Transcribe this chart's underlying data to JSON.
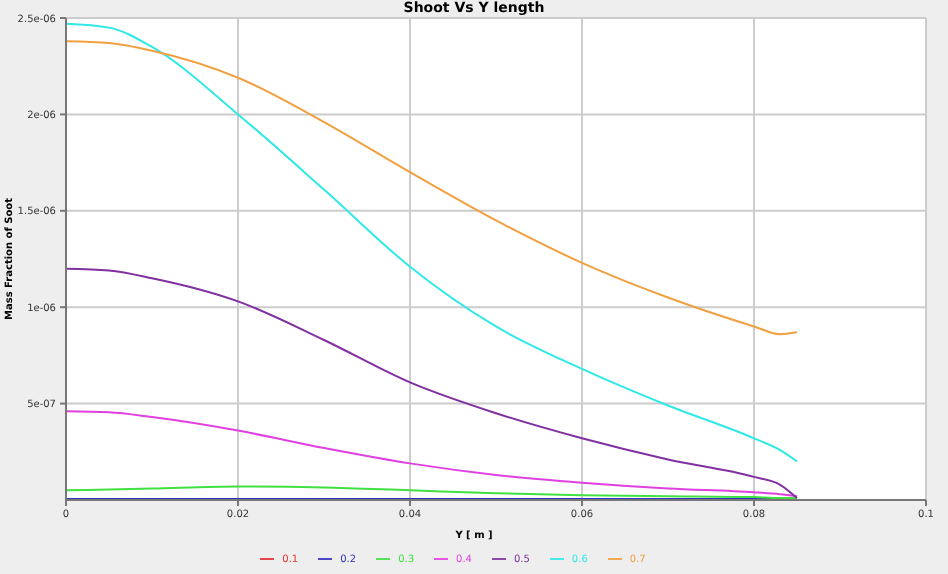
{
  "chart_data": {
    "type": "line",
    "title": "Shoot Vs Y length",
    "xlabel": "Y [ m ]",
    "ylabel": "Mass Fraction of Soot",
    "x": [
      0,
      0.005,
      0.01,
      0.02,
      0.03,
      0.04,
      0.05,
      0.06,
      0.07,
      0.08,
      0.083,
      0.085
    ],
    "series": [
      {
        "name": "0.1",
        "color": "#e03030",
        "values": [
          null,
          null,
          null,
          null,
          null,
          null,
          null,
          null,
          null,
          null,
          null,
          null
        ]
      },
      {
        "name": "0.2",
        "color": "#3030c0",
        "values": [
          5e-09,
          5e-09,
          5e-09,
          5e-09,
          5e-09,
          5e-09,
          5e-09,
          5e-09,
          5e-09,
          5e-09,
          5e-09,
          5e-09
        ]
      },
      {
        "name": "0.3",
        "color": "#40e040",
        "values": [
          5e-08,
          5.5e-08,
          6e-08,
          7e-08,
          6.5e-08,
          5e-08,
          3.5e-08,
          2.5e-08,
          2e-08,
          1.5e-08,
          1e-08,
          1e-08
        ]
      },
      {
        "name": "0.4",
        "color": "#e040e0",
        "values": [
          4.6e-07,
          4.55e-07,
          4.3e-07,
          3.6e-07,
          2.7e-07,
          1.9e-07,
          1.3e-07,
          9e-08,
          6e-08,
          4e-08,
          3e-08,
          2e-08
        ]
      },
      {
        "name": "0.5",
        "color": "#8030a0",
        "values": [
          1.2e-06,
          1.19e-06,
          1.15e-06,
          1.03e-06,
          8.3e-07,
          6.1e-07,
          4.5e-07,
          3.2e-07,
          2.1e-07,
          1.2e-07,
          8e-08,
          1e-08
        ]
      },
      {
        "name": "0.6",
        "color": "#30e8e8",
        "values": [
          2.47e-06,
          2.45e-06,
          2.35e-06,
          2e-06,
          1.61e-06,
          1.21e-06,
          9e-07,
          6.8e-07,
          4.9e-07,
          3.2e-07,
          2.6e-07,
          2e-07
        ]
      },
      {
        "name": "0.7",
        "color": "#f0a040",
        "values": [
          2.38e-06,
          2.37e-06,
          2.33e-06,
          2.19e-06,
          1.96e-06,
          1.7e-06,
          1.45e-06,
          1.23e-06,
          1.05e-06,
          9e-07,
          8.6e-07,
          8.7e-07
        ]
      }
    ],
    "xlim": [
      0,
      0.1
    ],
    "xticks": [
      0,
      0.02,
      0.04,
      0.06,
      0.08,
      0.1
    ],
    "ylim": [
      0,
      2.5e-06
    ],
    "yticks": [
      {
        "value": 5e-07,
        "label": "5e-07"
      },
      {
        "value": 1e-06,
        "label": "1e-06"
      },
      {
        "value": 1.5e-06,
        "label": "1.5e-06"
      },
      {
        "value": 2e-06,
        "label": "2e-06"
      },
      {
        "value": 2.5e-06,
        "label": "2.5e-06"
      }
    ],
    "grid": true,
    "legend": "bottom",
    "marker": "none",
    "line_style": "solid"
  }
}
